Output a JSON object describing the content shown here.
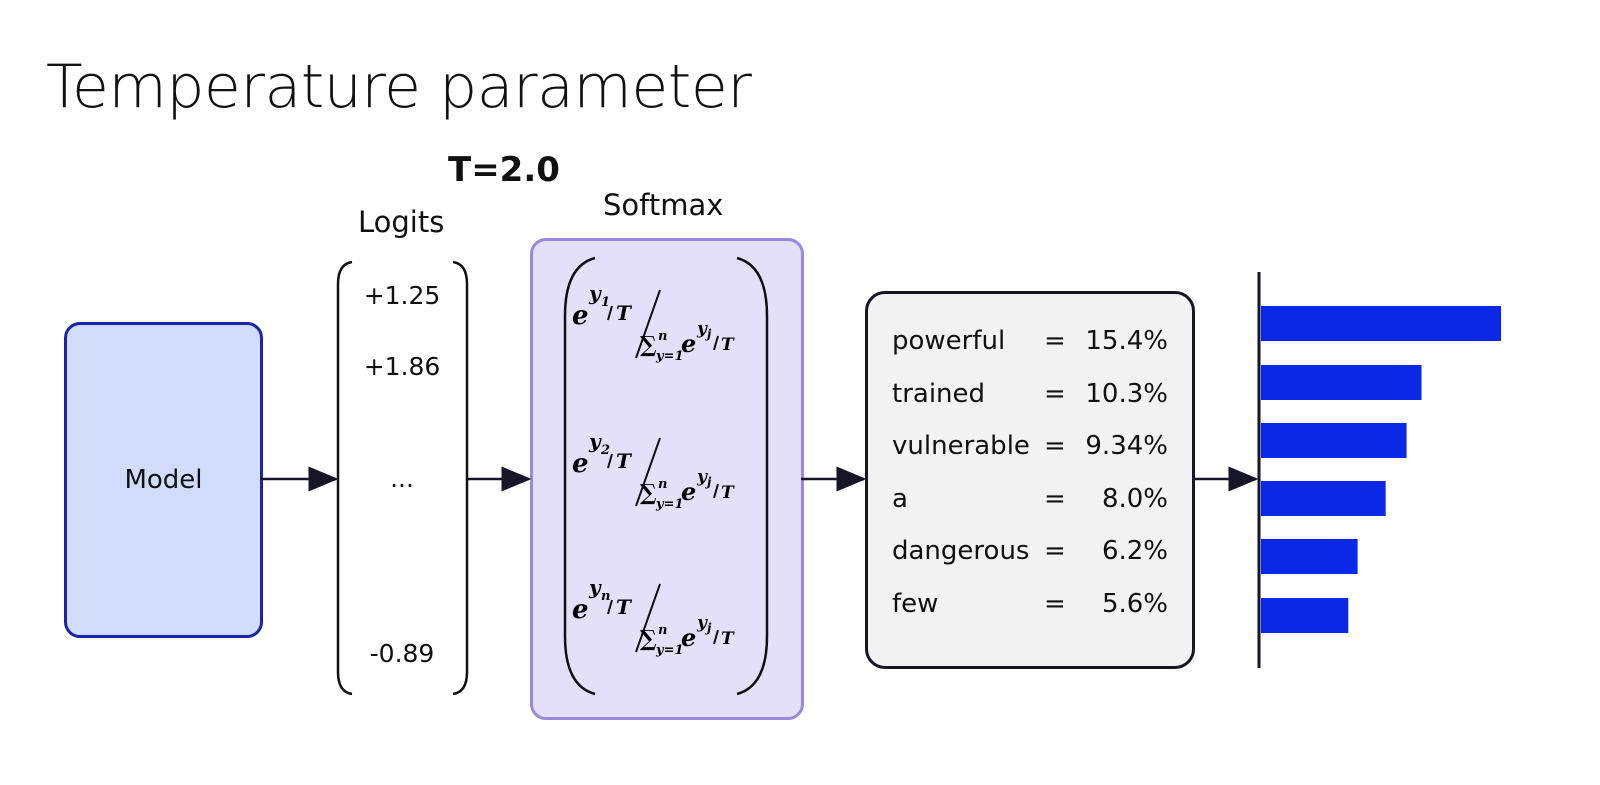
{
  "title": "Temperature parameter",
  "temperature_label": "T=2.0",
  "model": {
    "label": "Model"
  },
  "logits": {
    "title": "Logits",
    "values": [
      "+1.25",
      "+1.86",
      "...",
      "-0.89"
    ]
  },
  "softmax": {
    "title": "Softmax",
    "terms": [
      {
        "sub": "1"
      },
      {
        "sub": "2"
      },
      {
        "sub": "n"
      }
    ]
  },
  "probabilities": {
    "rows": [
      {
        "word": "powerful",
        "eq": "=",
        "pct": "15.4%"
      },
      {
        "word": "trained",
        "eq": "=",
        "pct": "10.3%"
      },
      {
        "word": "vulnerable",
        "eq": "=",
        "pct": "9.34%"
      },
      {
        "word": "a",
        "eq": "=",
        "pct": "8.0%"
      },
      {
        "word": "dangerous",
        "eq": "=",
        "pct": "6.2%"
      },
      {
        "word": "few",
        "eq": "=",
        "pct": "5.6%"
      }
    ]
  },
  "chart_data": {
    "type": "bar",
    "orientation": "horizontal",
    "categories": [
      "powerful",
      "trained",
      "vulnerable",
      "a",
      "dangerous",
      "few"
    ],
    "values": [
      15.4,
      10.3,
      9.34,
      8.0,
      6.2,
      5.6
    ],
    "color": "#0a28e6"
  },
  "colors": {
    "model_fill": "#d1dbfa",
    "model_border": "#1a24a8",
    "softmax_fill": "#e5e0fa",
    "softmax_border": "#9b88de",
    "prob_fill": "#f2f2f2",
    "prob_border": "#161628",
    "arrow": "#161628",
    "bar": "#0a28e6"
  }
}
